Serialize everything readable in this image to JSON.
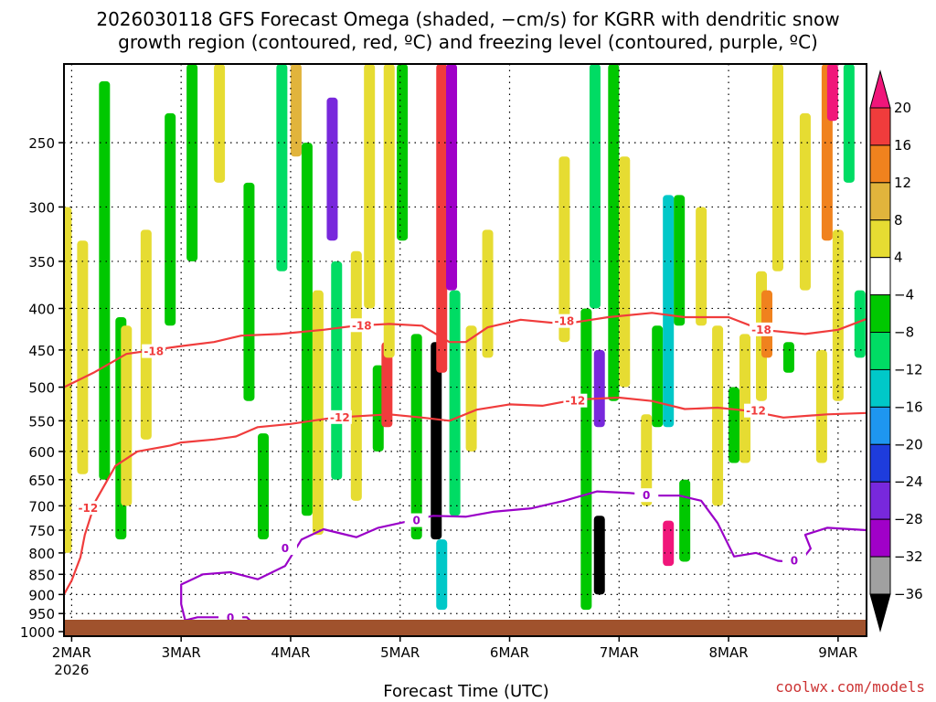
{
  "title_lines": [
    "2026030118 GFS Forecast Omega (shaded, −cm/s) for KGRR with dendritic snow",
    "growth region (contoured, red, ºC) and freezing level (contoured, purple, ºC)"
  ],
  "credit": "coolwx.com/models",
  "chart_data": {
    "type": "heatmap",
    "title": "2026030118 GFS Forecast Omega (shaded, −cm/s) for KGRR with dendritic snow growth region (contoured, red, ºC) and freezing level (contoured, purple, ºC)",
    "xlabel": "Forecast Time (UTC)",
    "ylabel": "",
    "x_range_days": [
      1.93,
      9.26
    ],
    "y_range_hpa": [
      1013,
      200
    ],
    "y_scale": "log",
    "x_ticks": [
      {
        "day": 2,
        "label": "2MAR",
        "sub": "2026"
      },
      {
        "day": 3,
        "label": "3MAR",
        "sub": ""
      },
      {
        "day": 4,
        "label": "4MAR",
        "sub": ""
      },
      {
        "day": 5,
        "label": "5MAR",
        "sub": ""
      },
      {
        "day": 6,
        "label": "6MAR",
        "sub": ""
      },
      {
        "day": 7,
        "label": "7MAR",
        "sub": ""
      },
      {
        "day": 8,
        "label": "8MAR",
        "sub": ""
      },
      {
        "day": 9,
        "label": "9MAR",
        "sub": ""
      }
    ],
    "y_ticks": [
      "250",
      "300",
      "350",
      "400",
      "450",
      "500",
      "550",
      "600",
      "650",
      "700",
      "750",
      "800",
      "850",
      "900",
      "950",
      "1000"
    ],
    "colorbar": {
      "labels": [
        "20",
        "16",
        "12",
        "8",
        "4",
        "−4",
        "−8",
        "−12",
        "−16",
        "−20",
        "−24",
        "−28",
        "−32",
        "−36"
      ],
      "colors": [
        "#f0167a",
        "#f03c3c",
        "#f0821e",
        "#e1b43c",
        "#e6dc32",
        "#ffffff",
        "#00c800",
        "#00dc64",
        "#00c8c8",
        "#1e96f0",
        "#1e3cdc",
        "#7828dc",
        "#a000c8",
        "#a0a0a0",
        "#000000"
      ]
    },
    "contours": [
      {
        "name": "dgz-minus-18",
        "label": "-18",
        "color": "#f03c3c",
        "points": [
          [
            1.93,
            500
          ],
          [
            2.2,
            480
          ],
          [
            2.5,
            455
          ],
          [
            2.75,
            450
          ],
          [
            3.0,
            445
          ],
          [
            3.3,
            440
          ],
          [
            3.55,
            432
          ],
          [
            3.9,
            430
          ],
          [
            4.3,
            425
          ],
          [
            4.6,
            420
          ],
          [
            4.9,
            418
          ],
          [
            5.2,
            420
          ],
          [
            5.45,
            440
          ],
          [
            5.6,
            440
          ],
          [
            5.8,
            422
          ],
          [
            6.1,
            413
          ],
          [
            6.5,
            418
          ],
          [
            6.9,
            410
          ],
          [
            7.3,
            405
          ],
          [
            7.6,
            410
          ],
          [
            8.0,
            410
          ],
          [
            8.3,
            425
          ],
          [
            8.7,
            430
          ],
          [
            9.0,
            425
          ],
          [
            9.26,
            412
          ]
        ],
        "labels": [
          [
            2.75,
            452
          ],
          [
            4.65,
            420
          ],
          [
            6.5,
            415
          ],
          [
            8.3,
            425
          ]
        ]
      },
      {
        "name": "dgz-minus-12",
        "label": "-12",
        "color": "#f03c3c",
        "points": [
          [
            1.93,
            900
          ],
          [
            2.0,
            865
          ],
          [
            2.08,
            810
          ],
          [
            2.12,
            760
          ],
          [
            2.22,
            690
          ],
          [
            2.4,
            625
          ],
          [
            2.6,
            600
          ],
          [
            2.9,
            590
          ],
          [
            3.0,
            585
          ],
          [
            3.3,
            580
          ],
          [
            3.5,
            575
          ],
          [
            3.7,
            560
          ],
          [
            4.0,
            555
          ],
          [
            4.4,
            545
          ],
          [
            4.9,
            540
          ],
          [
            5.2,
            545
          ],
          [
            5.45,
            550
          ],
          [
            5.7,
            533
          ],
          [
            6.0,
            525
          ],
          [
            6.3,
            527
          ],
          [
            6.6,
            518
          ],
          [
            7.0,
            515
          ],
          [
            7.3,
            520
          ],
          [
            7.6,
            532
          ],
          [
            7.9,
            530
          ],
          [
            8.2,
            535
          ],
          [
            8.5,
            545
          ],
          [
            8.9,
            540
          ],
          [
            9.26,
            538
          ]
        ],
        "labels": [
          [
            2.15,
            705
          ],
          [
            4.45,
            545
          ],
          [
            6.6,
            520
          ],
          [
            8.25,
            535
          ]
        ]
      },
      {
        "name": "freezing-level",
        "label": "0",
        "color": "#9a00c8",
        "points": [
          [
            2.6,
            1000
          ],
          [
            2.75,
            970
          ],
          [
            2.95,
            975
          ],
          [
            3.15,
            960
          ],
          [
            3.4,
            960
          ],
          [
            3.6,
            960
          ],
          [
            3.65,
            975
          ],
          [
            3.55,
            988
          ],
          [
            3.3,
            990
          ],
          [
            3.05,
            985
          ],
          [
            3.0,
            925
          ],
          [
            3.0,
            875
          ],
          [
            3.2,
            850
          ],
          [
            3.45,
            845
          ],
          [
            3.7,
            862
          ],
          [
            3.95,
            830
          ],
          [
            4.1,
            770
          ],
          [
            4.3,
            748
          ],
          [
            4.6,
            765
          ],
          [
            4.8,
            745
          ],
          [
            5.0,
            735
          ],
          [
            5.3,
            720
          ],
          [
            5.6,
            722
          ],
          [
            5.85,
            712
          ],
          [
            6.2,
            705
          ],
          [
            6.5,
            690
          ],
          [
            6.8,
            672
          ],
          [
            7.1,
            675
          ],
          [
            7.35,
            680
          ],
          [
            7.55,
            680
          ],
          [
            7.75,
            690
          ],
          [
            7.9,
            735
          ],
          [
            8.05,
            808
          ],
          [
            8.25,
            800
          ],
          [
            8.45,
            818
          ],
          [
            8.65,
            822
          ],
          [
            8.75,
            790
          ],
          [
            8.7,
            760
          ],
          [
            8.9,
            745
          ],
          [
            9.26,
            750
          ]
        ],
        "labels": [
          [
            3.45,
            962
          ],
          [
            3.95,
            790
          ],
          [
            5.15,
            730
          ],
          [
            7.25,
            680
          ],
          [
            8.6,
            818
          ]
        ]
      }
    ],
    "shading": [
      {
        "day": 1.95,
        "p0": 300,
        "p1": 800,
        "v": 4
      },
      {
        "day": 2.1,
        "p0": 330,
        "p1": 640,
        "v": 4
      },
      {
        "day": 2.3,
        "p0": 210,
        "p1": 650,
        "v": -6
      },
      {
        "day": 2.45,
        "p0": 410,
        "p1": 770,
        "v": -6
      },
      {
        "day": 2.5,
        "p0": 420,
        "p1": 700,
        "v": 4
      },
      {
        "day": 2.68,
        "p0": 320,
        "p1": 580,
        "v": 4
      },
      {
        "day": 2.9,
        "p0": 230,
        "p1": 420,
        "v": -6
      },
      {
        "day": 3.1,
        "p0": 200,
        "p1": 350,
        "v": -6
      },
      {
        "day": 3.35,
        "p0": 200,
        "p1": 280,
        "v": 4
      },
      {
        "day": 3.62,
        "p0": 280,
        "p1": 520,
        "v": -6
      },
      {
        "day": 3.75,
        "p0": 570,
        "p1": 770,
        "v": -6
      },
      {
        "day": 3.92,
        "p0": 200,
        "p1": 360,
        "v": -10
      },
      {
        "day": 4.05,
        "p0": 200,
        "p1": 260,
        "v": 8
      },
      {
        "day": 4.15,
        "p0": 250,
        "p1": 720,
        "v": -6
      },
      {
        "day": 4.25,
        "p0": 380,
        "p1": 760,
        "v": 4
      },
      {
        "day": 4.38,
        "p0": 220,
        "p1": 330,
        "v": -26
      },
      {
        "day": 4.42,
        "p0": 350,
        "p1": 650,
        "v": -10
      },
      {
        "day": 4.6,
        "p0": 340,
        "p1": 690,
        "v": 4
      },
      {
        "day": 4.72,
        "p0": 200,
        "p1": 400,
        "v": 4
      },
      {
        "day": 4.8,
        "p0": 470,
        "p1": 600,
        "v": -6
      },
      {
        "day": 4.88,
        "p0": 440,
        "p1": 560,
        "v": 16
      },
      {
        "day": 4.9,
        "p0": 200,
        "p1": 460,
        "v": 4
      },
      {
        "day": 5.02,
        "p0": 200,
        "p1": 330,
        "v": -6
      },
      {
        "day": 5.15,
        "p0": 430,
        "p1": 770,
        "v": -6
      },
      {
        "day": 5.33,
        "p0": 440,
        "p1": 770,
        "v": -38
      },
      {
        "day": 5.38,
        "p0": 200,
        "p1": 480,
        "v": 16
      },
      {
        "day": 5.38,
        "p0": 770,
        "p1": 940,
        "v": -14
      },
      {
        "day": 5.47,
        "p0": 200,
        "p1": 380,
        "v": -30
      },
      {
        "day": 5.5,
        "p0": 380,
        "p1": 720,
        "v": -10
      },
      {
        "day": 5.65,
        "p0": 420,
        "p1": 600,
        "v": 4
      },
      {
        "day": 5.8,
        "p0": 320,
        "p1": 460,
        "v": 4
      },
      {
        "day": 6.5,
        "p0": 260,
        "p1": 440,
        "v": 4
      },
      {
        "day": 6.7,
        "p0": 400,
        "p1": 940,
        "v": -6
      },
      {
        "day": 6.78,
        "p0": 200,
        "p1": 400,
        "v": -10
      },
      {
        "day": 6.82,
        "p0": 450,
        "p1": 560,
        "v": -26
      },
      {
        "day": 6.82,
        "p0": 720,
        "p1": 900,
        "v": -38
      },
      {
        "day": 6.95,
        "p0": 200,
        "p1": 520,
        "v": -6
      },
      {
        "day": 7.05,
        "p0": 260,
        "p1": 500,
        "v": 4
      },
      {
        "day": 7.25,
        "p0": 540,
        "p1": 700,
        "v": 4
      },
      {
        "day": 7.35,
        "p0": 420,
        "p1": 560,
        "v": -6
      },
      {
        "day": 7.45,
        "p0": 290,
        "p1": 560,
        "v": -14
      },
      {
        "day": 7.45,
        "p0": 730,
        "p1": 830,
        "v": 20
      },
      {
        "day": 7.55,
        "p0": 290,
        "p1": 420,
        "v": -6
      },
      {
        "day": 7.6,
        "p0": 650,
        "p1": 820,
        "v": -6
      },
      {
        "day": 7.75,
        "p0": 300,
        "p1": 420,
        "v": 4
      },
      {
        "day": 7.9,
        "p0": 420,
        "p1": 700,
        "v": 4
      },
      {
        "day": 8.05,
        "p0": 500,
        "p1": 620,
        "v": -6
      },
      {
        "day": 8.15,
        "p0": 430,
        "p1": 620,
        "v": 4
      },
      {
        "day": 8.3,
        "p0": 360,
        "p1": 520,
        "v": 4
      },
      {
        "day": 8.35,
        "p0": 380,
        "p1": 460,
        "v": 12
      },
      {
        "day": 8.45,
        "p0": 200,
        "p1": 360,
        "v": 4
      },
      {
        "day": 8.55,
        "p0": 440,
        "p1": 480,
        "v": -6
      },
      {
        "day": 8.7,
        "p0": 230,
        "p1": 380,
        "v": 4
      },
      {
        "day": 8.85,
        "p0": 450,
        "p1": 620,
        "v": 4
      },
      {
        "day": 8.9,
        "p0": 200,
        "p1": 330,
        "v": 12
      },
      {
        "day": 8.95,
        "p0": 200,
        "p1": 235,
        "v": 20
      },
      {
        "day": 9.0,
        "p0": 320,
        "p1": 520,
        "v": 4
      },
      {
        "day": 9.1,
        "p0": 200,
        "p1": 280,
        "v": -10
      },
      {
        "day": 9.2,
        "p0": 380,
        "p1": 460,
        "v": -10
      }
    ]
  }
}
